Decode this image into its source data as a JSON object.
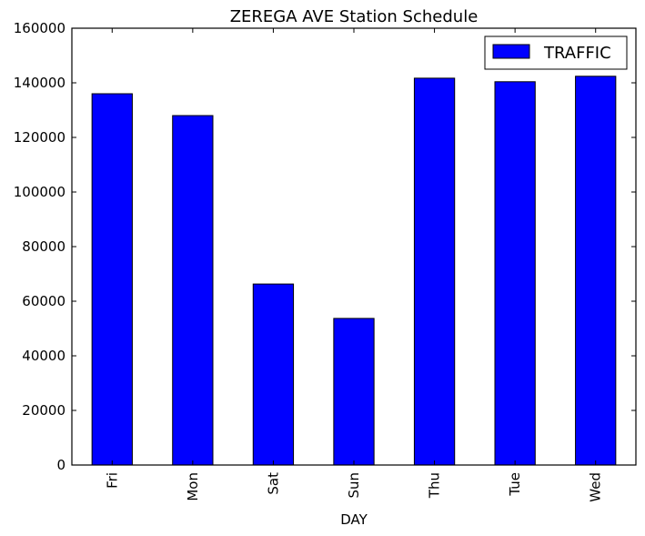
{
  "chart_data": {
    "type": "bar",
    "title": "ZEREGA AVE Station Schedule",
    "xlabel": "DAY",
    "ylabel": "",
    "categories": [
      "Fri",
      "Mon",
      "Sat",
      "Sun",
      "Thu",
      "Tue",
      "Wed"
    ],
    "series": [
      {
        "name": "TRAFFIC",
        "values": [
          136000,
          128000,
          66300,
          53700,
          141700,
          140400,
          142400
        ],
        "color": "#0000ff"
      }
    ],
    "ylim": [
      0,
      160000
    ],
    "yticks": [
      0,
      20000,
      40000,
      60000,
      80000,
      100000,
      120000,
      140000,
      160000
    ],
    "ytick_labels": [
      "0",
      "20000",
      "40000",
      "60000",
      "80000",
      "100000",
      "120000",
      "140000",
      "160000"
    ],
    "legend_position": "top-right",
    "grid": false
  }
}
